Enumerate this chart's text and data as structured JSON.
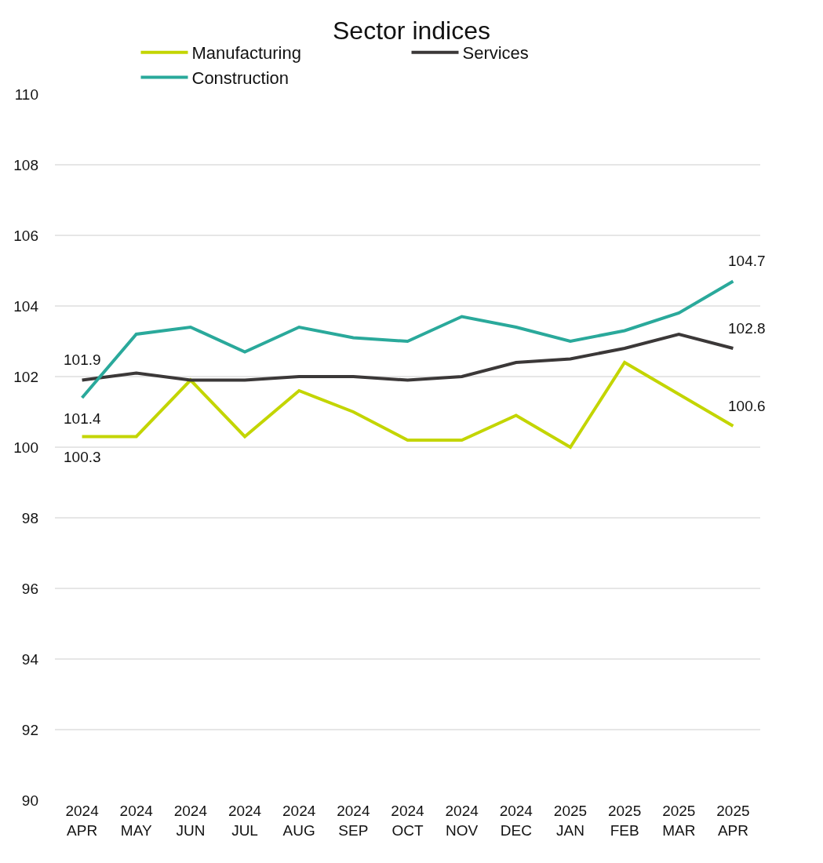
{
  "chart_data": {
    "type": "line",
    "title": "Sector indices",
    "categories": [
      "2024\nAPR",
      "2024\nMAY",
      "2024\nJUN",
      "2024\nJUL",
      "2024\nAUG",
      "2024\nSEP",
      "2024\nOCT",
      "2024\nNOV",
      "2024\nDEC",
      "2025\nJAN",
      "2025\nFEB",
      "2025\nMAR",
      "2025\nAPR"
    ],
    "series": [
      {
        "name": "Manufacturing",
        "color": "#c3d500",
        "values": [
          100.3,
          100.3,
          101.9,
          100.3,
          101.6,
          101.0,
          100.2,
          100.2,
          100.9,
          100.0,
          102.4,
          101.5,
          100.6
        ],
        "value_labels": [
          "100.3",
          null,
          null,
          null,
          null,
          null,
          null,
          null,
          null,
          null,
          null,
          null,
          "100.6"
        ]
      },
      {
        "name": "Services",
        "color": "#3b3838",
        "values": [
          101.9,
          102.1,
          101.9,
          101.9,
          102.0,
          102.0,
          101.9,
          102.0,
          102.4,
          102.5,
          102.8,
          103.2,
          102.8
        ],
        "value_labels": [
          "101.9",
          null,
          null,
          null,
          null,
          null,
          null,
          null,
          null,
          null,
          null,
          null,
          "102.8"
        ]
      },
      {
        "name": "Construction",
        "color": "#2aa99b",
        "values": [
          101.4,
          103.2,
          103.4,
          102.7,
          103.4,
          103.1,
          103.0,
          103.7,
          103.4,
          103.0,
          103.3,
          103.8,
          104.7
        ],
        "value_labels": [
          "101.4",
          null,
          null,
          null,
          null,
          null,
          null,
          null,
          null,
          null,
          null,
          null,
          "104.7"
        ]
      }
    ],
    "ylim": [
      90,
      110
    ],
    "yticks": [
      90,
      92,
      94,
      96,
      98,
      100,
      102,
      104,
      106,
      108,
      110
    ],
    "grid": "y",
    "legend": "top",
    "marker": "none",
    "line_style": "solid"
  }
}
